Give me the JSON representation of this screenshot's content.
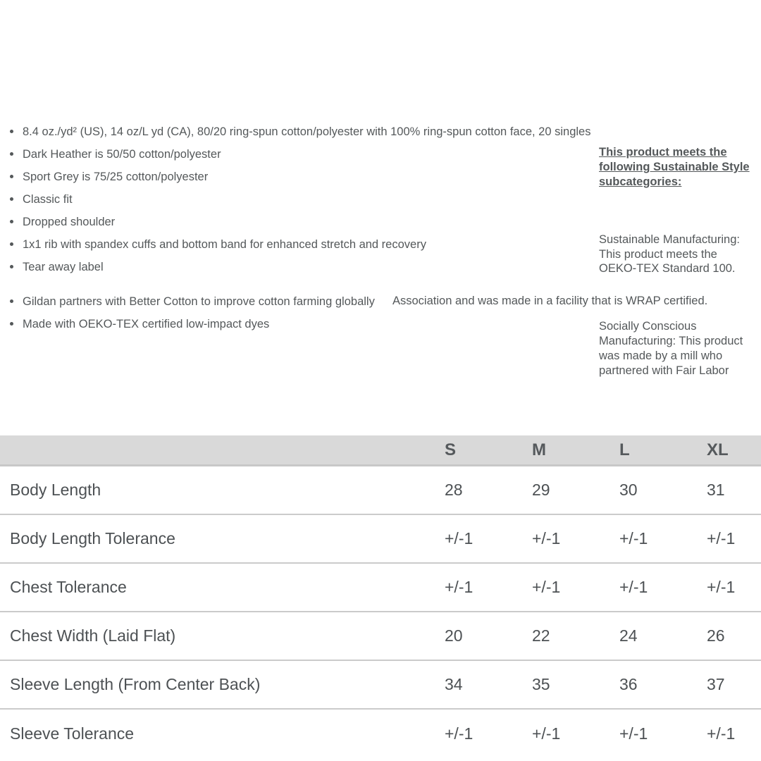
{
  "features": {
    "primary": [
      "8.4 oz./yd² (US), 14 oz/L yd (CA), 80/20 ring-spun cotton/polyester with 100% ring-spun cotton face, 20 singles",
      "Dark Heather is 50/50 cotton/polyester",
      "Sport Grey is 75/25 cotton/polyester",
      "Classic fit",
      "Dropped shoulder",
      "1x1 rib with spandex cuffs and bottom band for enhanced stretch and recovery",
      "Tear away label"
    ],
    "secondary": [
      "Gildan partners with Better Cotton to improve cotton farming globally",
      "Made with OEKO-TEX certified low-impact dyes"
    ]
  },
  "sidebar": {
    "heading": "This product meets the\nfollowing Sustainable Style\nsubcategories:",
    "paragraph1": "Sustainable Manufacturing:\nThis product meets the\nOEKO-TEX Standard 100.",
    "paragraph2": "Socially Conscious\nManufacturing: This product\nwas made by a mill who\npartnered with Fair Labor",
    "overflow_line": "Association and was made in a facility that is WRAP certified."
  },
  "size_chart": {
    "columns": [
      "S",
      "M",
      "L",
      "XL"
    ],
    "rows": [
      {
        "label": "Body Length",
        "values": [
          "28",
          "29",
          "30",
          "31"
        ]
      },
      {
        "label": "Body Length Tolerance",
        "values": [
          "+/-1",
          "+/-1",
          "+/-1",
          "+/-1"
        ]
      },
      {
        "label": "Chest Tolerance",
        "values": [
          "+/-1",
          "+/-1",
          "+/-1",
          "+/-1"
        ]
      },
      {
        "label": "Chest Width (Laid Flat)",
        "values": [
          "20",
          "22",
          "24",
          "26"
        ]
      },
      {
        "label": "Sleeve Length (From Center Back)",
        "values": [
          "34",
          "35",
          "36",
          "37"
        ]
      },
      {
        "label": "Sleeve Tolerance",
        "values": [
          "+/-1",
          "+/-1",
          "+/-1",
          "+/-1"
        ]
      }
    ]
  },
  "colors": {
    "body_text": "#54585a",
    "table_text": "#4d5154",
    "table_header_bg": "#d9d9d9",
    "table_header_border": "#c8c8c8",
    "row_border": "#cbcbcb"
  }
}
